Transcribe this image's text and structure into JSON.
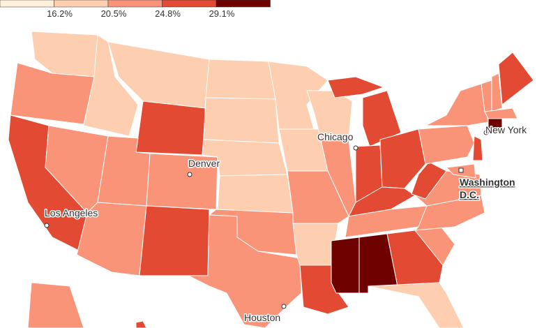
{
  "legend": {
    "colors": [
      "#fef0d9",
      "#fdcfb0",
      "#fa9479",
      "#e34a33",
      "#6e0000"
    ],
    "ticks": [
      {
        "value": 16.2,
        "label": "16.2%"
      },
      {
        "value": 20.5,
        "label": "20.5%"
      },
      {
        "value": 24.8,
        "label": "24.8%"
      },
      {
        "value": 29.1,
        "label": "29.1%"
      }
    ]
  },
  "cities": [
    {
      "name": "Chicago"
    },
    {
      "name": "Denver"
    },
    {
      "name": "New York"
    },
    {
      "name_lines": [
        "Washington",
        "D.C."
      ]
    },
    {
      "name": "Los Angeles"
    },
    {
      "name": "Houston"
    }
  ]
}
